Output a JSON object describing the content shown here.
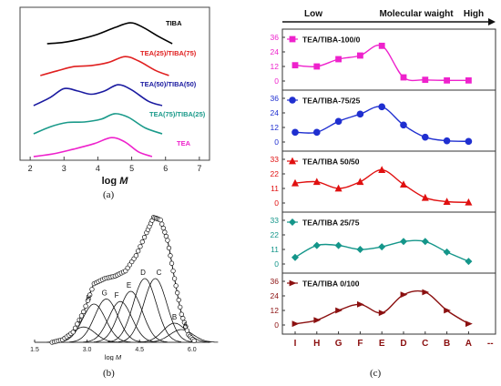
{
  "figure": {
    "captions": {
      "a": "(a)",
      "b": "(b)",
      "c": "(c)"
    }
  },
  "chart_data": [
    {
      "id": "a",
      "type": "line",
      "xlabel": "log M",
      "x_ticks": [
        2,
        3,
        4,
        5,
        6,
        7
      ],
      "xlim": [
        1.7,
        7.3
      ],
      "series": [
        {
          "name": "TIBA",
          "color": "#000000",
          "points": [
            [
              2.5,
              0.0
            ],
            [
              3.0,
              0.06
            ],
            [
              3.5,
              0.2
            ],
            [
              4.0,
              0.4
            ],
            [
              4.5,
              0.68
            ],
            [
              4.95,
              0.88
            ],
            [
              5.3,
              0.72
            ],
            [
              5.8,
              0.3
            ],
            [
              6.2,
              0.0
            ]
          ]
        },
        {
          "name": "TEA(25)/TIBA(75)",
          "color": "#e02020",
          "points": [
            [
              2.3,
              0.0
            ],
            [
              2.8,
              0.2
            ],
            [
              3.3,
              0.38
            ],
            [
              3.8,
              0.42
            ],
            [
              4.3,
              0.55
            ],
            [
              4.8,
              0.8
            ],
            [
              5.2,
              0.62
            ],
            [
              5.7,
              0.22
            ],
            [
              6.1,
              0.0
            ]
          ]
        },
        {
          "name": "TEA(50)/TIBA(50)",
          "color": "#1a1aa0",
          "points": [
            [
              2.1,
              0.0
            ],
            [
              2.6,
              0.35
            ],
            [
              3.0,
              0.72
            ],
            [
              3.4,
              0.62
            ],
            [
              3.8,
              0.48
            ],
            [
              4.2,
              0.62
            ],
            [
              4.6,
              0.88
            ],
            [
              5.0,
              0.66
            ],
            [
              5.5,
              0.18
            ],
            [
              5.9,
              0.0
            ]
          ]
        },
        {
          "name": "TEA(75)/TIBA(25)",
          "color": "#1a9a8a",
          "points": [
            [
              2.1,
              0.0
            ],
            [
              2.6,
              0.3
            ],
            [
              3.1,
              0.48
            ],
            [
              3.6,
              0.5
            ],
            [
              4.1,
              0.62
            ],
            [
              4.5,
              0.85
            ],
            [
              4.9,
              0.7
            ],
            [
              5.4,
              0.25
            ],
            [
              5.9,
              0.0
            ]
          ]
        },
        {
          "name": "TEA",
          "color": "#ee22cc",
          "points": [
            [
              2.1,
              0.0
            ],
            [
              2.7,
              0.12
            ],
            [
              3.3,
              0.32
            ],
            [
              3.9,
              0.55
            ],
            [
              4.4,
              0.8
            ],
            [
              4.8,
              0.62
            ],
            [
              5.2,
              0.2
            ],
            [
              5.6,
              0.0
            ]
          ]
        }
      ]
    },
    {
      "id": "b",
      "type": "line",
      "xlabel": "log M",
      "x_tick_labels": [
        "1.5",
        "3.0",
        "4.5",
        "6.0"
      ],
      "x_ticks": [
        1.5,
        3.0,
        4.5,
        6.0
      ],
      "xlim": [
        1.5,
        6.5
      ],
      "ylim": [
        0,
        1
      ],
      "envelope": {
        "x": [
          2.0,
          2.3,
          2.6,
          2.9,
          3.2,
          3.5,
          3.8,
          4.1,
          4.4,
          4.7,
          4.9,
          5.1,
          5.3,
          5.5,
          5.7,
          5.9,
          6.1
        ],
        "y": [
          0.0,
          0.02,
          0.08,
          0.24,
          0.46,
          0.5,
          0.52,
          0.56,
          0.68,
          0.86,
          0.98,
          0.96,
          0.8,
          0.5,
          0.22,
          0.06,
          0.0
        ]
      },
      "components": [
        {
          "label": "I",
          "center": 2.9,
          "height": 0.12
        },
        {
          "label": "H",
          "center": 3.2,
          "height": 0.3
        },
        {
          "label": "G",
          "center": 3.55,
          "height": 0.34
        },
        {
          "label": "F",
          "center": 3.95,
          "height": 0.32
        },
        {
          "label": "E",
          "center": 4.25,
          "height": 0.4
        },
        {
          "label": "D",
          "center": 4.65,
          "height": 0.5
        },
        {
          "label": "C",
          "center": 4.95,
          "height": 0.5
        },
        {
          "label": "B",
          "center": 5.5,
          "height": 0.15
        },
        {
          "label": "A",
          "center": 5.7,
          "height": 0.1
        }
      ]
    },
    {
      "id": "c",
      "type": "line",
      "header": {
        "low": "Low",
        "center": "Molecular waight",
        "high": "High"
      },
      "categories": [
        "I",
        "H",
        "G",
        "F",
        "E",
        "D",
        "C",
        "B",
        "A",
        "--"
      ],
      "panels": [
        {
          "name": "TEA/TIBA-100/0",
          "color": "#ee22cc",
          "marker": "square",
          "ylim": [
            0,
            36
          ],
          "y_ticks": [
            0,
            12,
            24,
            36
          ],
          "values": [
            13,
            12,
            18,
            21,
            29,
            3,
            1,
            0.5,
            0.5
          ]
        },
        {
          "name": "TEA/TIBA-75/25",
          "color": "#1f2fd0",
          "marker": "circle",
          "ylim": [
            0,
            36
          ],
          "y_ticks": [
            0,
            12,
            24,
            36
          ],
          "values": [
            8,
            8,
            17,
            23,
            29,
            14,
            4,
            1,
            0.5
          ]
        },
        {
          "name": "TEA/TIBA 50/50",
          "color": "#e01010",
          "marker": "triangle",
          "ylim": [
            0,
            33
          ],
          "y_ticks": [
            0,
            11,
            22,
            33
          ],
          "values": [
            15,
            16,
            11,
            16,
            25,
            14,
            4,
            1,
            0.5
          ]
        },
        {
          "name": "TEA/TIBA 25/75",
          "color": "#14968a",
          "marker": "diamond",
          "ylim": [
            0,
            33
          ],
          "y_ticks": [
            0,
            11,
            22,
            33
          ],
          "values": [
            5,
            14,
            14,
            11,
            13,
            17,
            17,
            9,
            2
          ]
        },
        {
          "name": "TEA/TIBA 0/100",
          "color": "#8b1010",
          "marker": "tri-right",
          "ylim": [
            0,
            36
          ],
          "y_ticks": [
            0,
            12,
            24,
            36
          ],
          "values": [
            1,
            4,
            12,
            17,
            10,
            25,
            27,
            12,
            1
          ]
        }
      ]
    }
  ]
}
